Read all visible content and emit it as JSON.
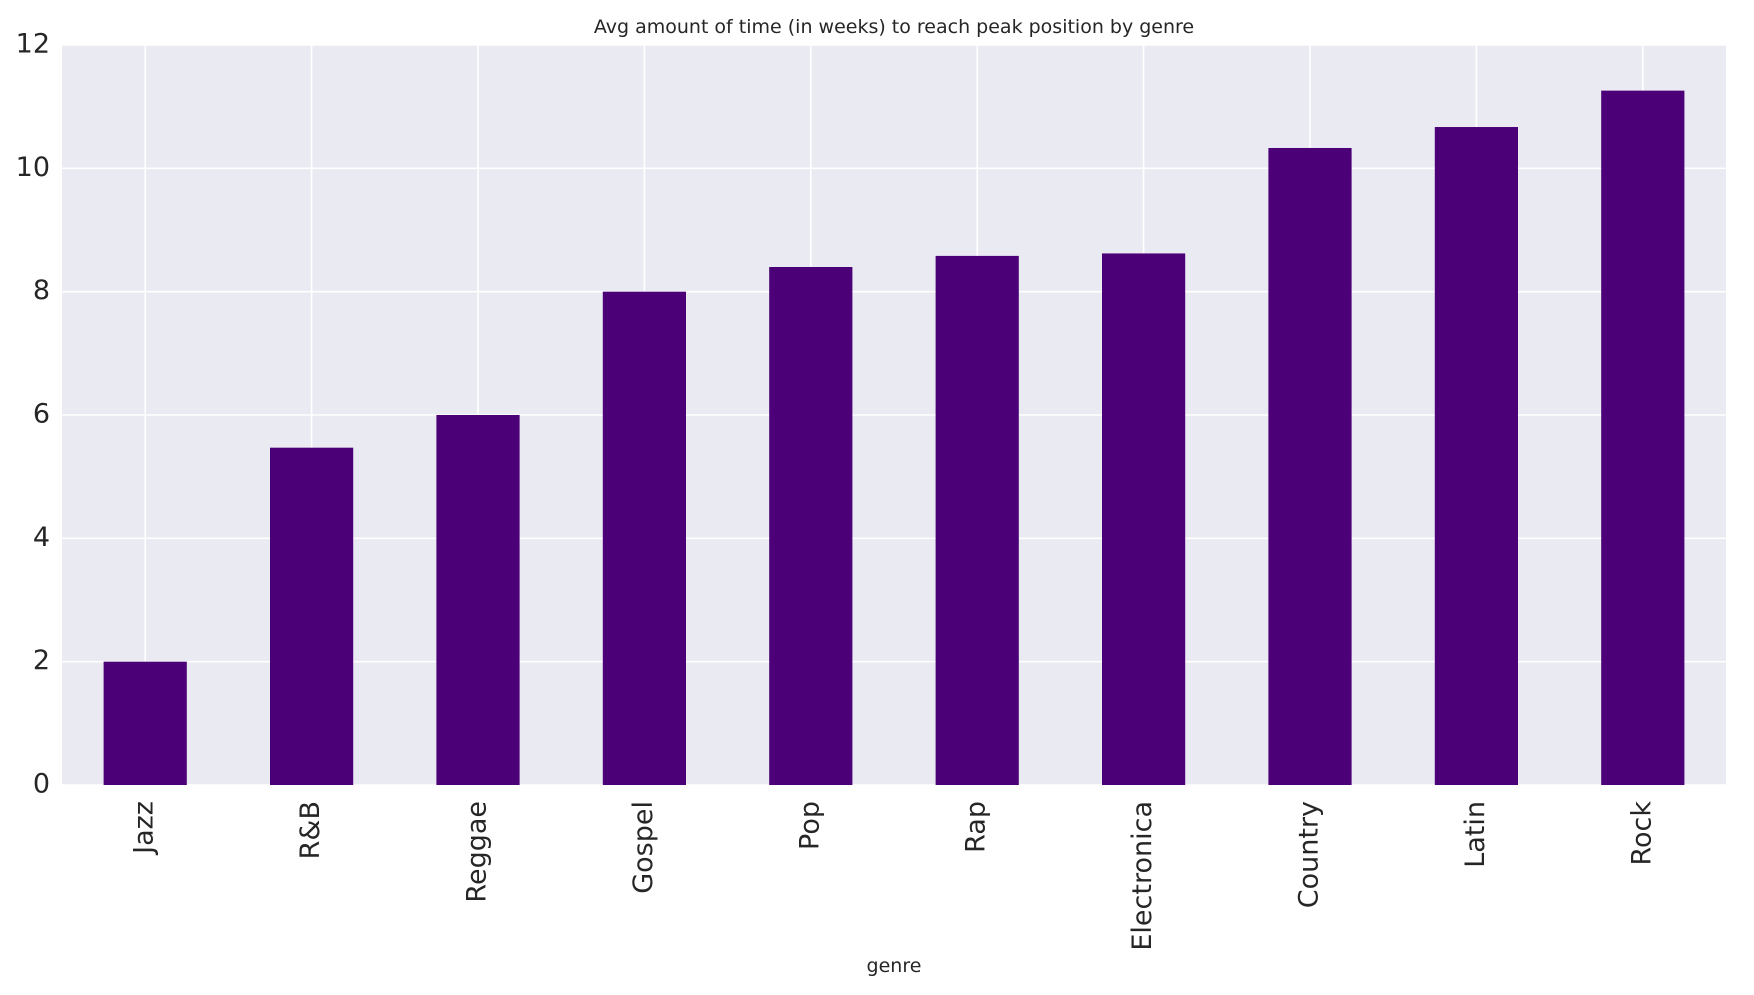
{
  "chart_data": {
    "type": "bar",
    "title": "Avg amount of time (in weeks) to reach peak position by genre",
    "xlabel": "genre",
    "ylabel": "",
    "categories": [
      "Jazz",
      "R&B",
      "Reggae",
      "Gospel",
      "Pop",
      "Rap",
      "Electronica",
      "Country",
      "Latin",
      "Rock"
    ],
    "values": [
      2.0,
      5.47,
      6.0,
      8.0,
      8.4,
      8.58,
      8.62,
      10.33,
      10.67,
      11.26
    ],
    "ylim": [
      0,
      12
    ],
    "yticks": [
      "0",
      "2",
      "4",
      "6",
      "8",
      "10",
      "12"
    ],
    "grid": true,
    "legend": "none",
    "colors": {
      "bar": "#4b0078",
      "plot_background": "#eaeaf2",
      "grid": "#ffffff",
      "text": "#262626"
    }
  }
}
